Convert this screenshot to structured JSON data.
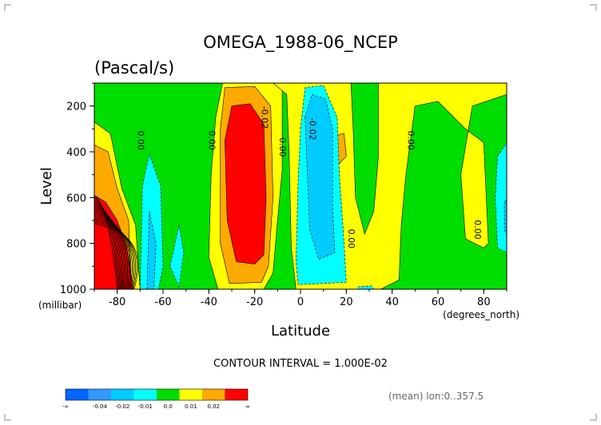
{
  "chart_data": {
    "type": "contour",
    "title": "OMEGA_1988-06_NCEP",
    "subtitle": "(Pascal/s)",
    "xlabel": "Latitude",
    "xunit": "(degrees_north)",
    "ylabel": "Level",
    "yunit": "(millibar)",
    "xlim": [
      -90,
      90
    ],
    "ylim": [
      1000,
      100
    ],
    "x_ticks": [
      -80,
      -60,
      -40,
      -20,
      0,
      20,
      40,
      60,
      80
    ],
    "y_ticks": [
      200,
      400,
      600,
      800,
      1000
    ],
    "contour_interval_text": "CONTOUR INTERVAL = 1.000E-02",
    "mean_note": "(mean) lon:0..357.5",
    "contour_labels": [
      {
        "text": "0.00",
        "x": -71,
        "y": 350
      },
      {
        "text": "0.00",
        "x": -40,
        "y": 350
      },
      {
        "text": "-0.02",
        "x": -17,
        "y": 250
      },
      {
        "text": "0.00",
        "x": -9,
        "y": 380
      },
      {
        "text": "-0.02",
        "x": 4,
        "y": 300
      },
      {
        "text": "0.00",
        "x": 47,
        "y": 350
      },
      {
        "text": "0.00",
        "x": 21,
        "y": 780
      },
      {
        "text": "0.00",
        "x": 76,
        "y": 740
      }
    ],
    "colorbar": {
      "colors": [
        "#0066ff",
        "#3399ff",
        "#00ccff",
        "#00ffff",
        "#00dd00",
        "#ffff00",
        "#ffaa00",
        "#ff0000"
      ],
      "labels": [
        "-∞",
        "-0.04",
        "-0.02",
        "-0.01",
        "0.0",
        "0.01",
        "0.02",
        "∞"
      ]
    },
    "regions": [
      {
        "level": "0 to 0.01",
        "color": "#00dd00",
        "polygon": [
          [
            -90,
            100
          ],
          [
            90,
            100
          ],
          [
            90,
            1000
          ],
          [
            -90,
            1000
          ]
        ]
      },
      {
        "level": "-0.01 to 0",
        "color": "#ffff00",
        "polygon": [
          [
            -90,
            270
          ],
          [
            -83,
            320
          ],
          [
            -78,
            560
          ],
          [
            -72,
            720
          ],
          [
            -70,
            1000
          ],
          [
            -90,
            1000
          ]
        ]
      },
      {
        "level": "-0.02 to -0.01",
        "color": "#ffaa00",
        "polygon": [
          [
            -90,
            370
          ],
          [
            -84,
            400
          ],
          [
            -80,
            560
          ],
          [
            -75,
            700
          ],
          [
            -74,
            1000
          ],
          [
            -90,
            1000
          ]
        ]
      },
      {
        "level": "< -0.02",
        "color": "#ff0000",
        "polygon": [
          [
            -90,
            590
          ],
          [
            -85,
            620
          ],
          [
            -80,
            700
          ],
          [
            -76,
            810
          ],
          [
            -73,
            1000
          ],
          [
            -90,
            1000
          ]
        ]
      },
      {
        "level": "-0.01 to 0",
        "color": "#ffff00",
        "polygon": [
          [
            -34,
            100
          ],
          [
            -8,
            100
          ],
          [
            -8,
            480
          ],
          [
            -10,
            700
          ],
          [
            -12,
            930
          ],
          [
            -16,
            1000
          ],
          [
            -36,
            1000
          ],
          [
            -40,
            860
          ],
          [
            -39,
            500
          ],
          [
            -37,
            250
          ]
        ]
      },
      {
        "level": "-0.02 to -0.01",
        "color": "#ffaa00",
        "polygon": [
          [
            -33,
            120
          ],
          [
            -20,
            115
          ],
          [
            -13,
            200
          ],
          [
            -12,
            600
          ],
          [
            -14,
            900
          ],
          [
            -17,
            970
          ],
          [
            -31,
            975
          ],
          [
            -35,
            800
          ],
          [
            -35,
            300
          ]
        ]
      },
      {
        "level": "< -0.02",
        "color": "#ff0000",
        "polygon": [
          [
            -30,
            200
          ],
          [
            -22,
            190
          ],
          [
            -16,
            280
          ],
          [
            -15,
            600
          ],
          [
            -16,
            850
          ],
          [
            -20,
            890
          ],
          [
            -28,
            880
          ],
          [
            -32,
            700
          ],
          [
            -33,
            350
          ]
        ]
      },
      {
        "level": "-0.01 to 0",
        "color": "#ffff00",
        "polygon": [
          [
            -12,
            100
          ],
          [
            90,
            100
          ],
          [
            90,
            150
          ],
          [
            75,
            200
          ],
          [
            70,
            500
          ],
          [
            72,
            780
          ],
          [
            80,
            820
          ],
          [
            82,
            800
          ],
          [
            80,
            360
          ],
          [
            72,
            300
          ],
          [
            60,
            180
          ],
          [
            50,
            200
          ],
          [
            46,
            500
          ],
          [
            44,
            720
          ],
          [
            43,
            960
          ],
          [
            35,
            1000
          ],
          [
            -2,
            1000
          ],
          [
            -4,
            820
          ],
          [
            -5,
            400
          ],
          [
            -6,
            150
          ]
        ]
      },
      {
        "level": "-0.02 to -0.01",
        "color": "#ffaa00",
        "polygon": [
          [
            14,
            330
          ],
          [
            19,
            320
          ],
          [
            20,
            420
          ],
          [
            16,
            460
          ]
        ]
      },
      {
        "level": "0 to 0.01",
        "color": "#00dd00",
        "polygon": [
          [
            22,
            100
          ],
          [
            34,
            100
          ],
          [
            34,
            420
          ],
          [
            32,
            660
          ],
          [
            28,
            760
          ],
          [
            24,
            600
          ],
          [
            23,
            300
          ]
        ]
      },
      {
        "level": "0.01 to 0.02",
        "color": "#00ffff",
        "polygon": [
          [
            0,
            300
          ],
          [
            2,
            120
          ],
          [
            10,
            110
          ],
          [
            16,
            250
          ],
          [
            17,
            500
          ],
          [
            19,
            800
          ],
          [
            20,
            970
          ],
          [
            -1,
            980
          ],
          [
            -2,
            880
          ],
          [
            -1,
            520
          ]
        ]
      },
      {
        "level": "0.02 to 0.03",
        "color": "#00ccff",
        "polygon": [
          [
            2,
            250
          ],
          [
            5,
            150
          ],
          [
            11,
            170
          ],
          [
            14,
            300
          ],
          [
            14,
            640
          ],
          [
            15,
            840
          ],
          [
            8,
            870
          ],
          [
            4,
            740
          ],
          [
            3,
            500
          ]
        ]
      },
      {
        "level": "0.01 to 0.02",
        "color": "#00ffff",
        "polygon": [
          [
            -70,
            1000
          ],
          [
            -69,
            550
          ],
          [
            -66,
            410
          ],
          [
            -61,
            550
          ],
          [
            -60,
            900
          ],
          [
            -62,
            1000
          ]
        ]
      },
      {
        "level": "0.02 to 0.03",
        "color": "#00ccff",
        "polygon": [
          [
            -67,
            1000
          ],
          [
            -66,
            660
          ],
          [
            -63,
            800
          ],
          [
            -64,
            1000
          ]
        ]
      },
      {
        "level": "0.01 to 0.02",
        "color": "#00ffff",
        "polygon": [
          [
            -57,
            900
          ],
          [
            -53,
            720
          ],
          [
            -51,
            840
          ],
          [
            -53,
            990
          ]
        ]
      },
      {
        "level": "0.01 to 0.02",
        "color": "#00ffff",
        "polygon": [
          [
            86,
            420
          ],
          [
            90,
            360
          ],
          [
            90,
            840
          ],
          [
            86,
            820
          ],
          [
            85,
            600
          ]
        ]
      },
      {
        "level": "0.02 to 0.03",
        "color": "#00ccff",
        "polygon": [
          [
            89,
            620
          ],
          [
            90,
            610
          ],
          [
            90,
            760
          ],
          [
            89,
            740
          ]
        ]
      },
      {
        "level": "0.01 to 0.02",
        "color": "#00ffff",
        "polygon": [
          [
            25,
            990
          ],
          [
            31,
            985
          ],
          [
            32,
            1000
          ],
          [
            25,
            1000
          ]
        ]
      }
    ]
  }
}
